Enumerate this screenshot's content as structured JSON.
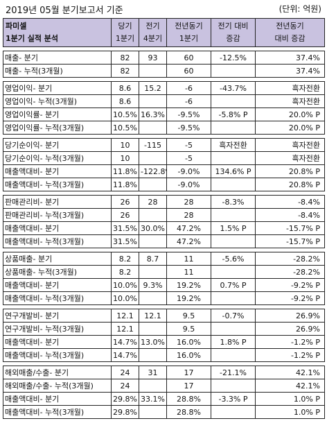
{
  "title": "2019년 05월 분기보고서 기준",
  "unit": "(단위: 억원)",
  "header": {
    "company": "파미셀",
    "subtitle": "1분기 실적 분석",
    "cols": [
      [
        "당기",
        "1분기"
      ],
      [
        "전기",
        "4분기"
      ],
      [
        "전년동기",
        "1분기"
      ],
      [
        "전기 대비",
        "증감"
      ],
      [
        "전년동기",
        "대비 증감"
      ]
    ]
  },
  "groups": [
    [
      [
        "매출- 분기",
        "82",
        "93",
        "60",
        "-12.5%",
        "37.4%"
      ],
      [
        "매출- 누적(3개월)",
        "82",
        "",
        "60",
        "",
        "37.4%"
      ]
    ],
    [
      [
        "영업이익- 분기",
        "8.6",
        "15.2",
        "-6",
        "-43.7%",
        "흑자전환"
      ],
      [
        "영업이익- 누적(3개월)",
        "8.6",
        "",
        "-6",
        "",
        "흑자전환"
      ],
      [
        "영업이익률- 분기",
        "10.5%",
        "16.3%",
        "-9.5%",
        "-5.8% P",
        "20.0% P"
      ],
      [
        "영업이익률- 누적(3개월)",
        "10.5%",
        "",
        "-9.5%",
        "",
        "20.0% P"
      ]
    ],
    [
      [
        "당기순이익- 분기",
        "10",
        "-115",
        "-5",
        "흑자전환",
        "흑자전환"
      ],
      [
        "당기순이익- 누적(3개월)",
        "10",
        "",
        "-5",
        "",
        "흑자전환"
      ],
      [
        "매출액대비- 분기",
        "11.8%",
        "-122.8%",
        "-9.0%",
        "134.6% P",
        "20.8% P"
      ],
      [
        "매출액대비- 누적(3개월)",
        "11.8%",
        "",
        "-9.0%",
        "",
        "20.8% P"
      ]
    ],
    [
      [
        "판매관리비- 분기",
        "26",
        "28",
        "28",
        "-8.3%",
        "-8.4%"
      ],
      [
        "판매관리비- 누적(3개월)",
        "26",
        "",
        "28",
        "",
        "-8.4%"
      ],
      [
        "매출액대비- 분기",
        "31.5%",
        "30.0%",
        "47.2%",
        "1.5% P",
        "-15.7% P"
      ],
      [
        "매출액대비- 누적(3개월)",
        "31.5%",
        "",
        "47.2%",
        "",
        "-15.7% P"
      ]
    ],
    [
      [
        "상품매출- 분기",
        "8.2",
        "8.7",
        "11",
        "-5.6%",
        "-28.2%"
      ],
      [
        "상품매출- 누적(3개월)",
        "8.2",
        "",
        "11",
        "",
        "-28.2%"
      ],
      [
        "매출액대비- 분기",
        "10.0%",
        "9.3%",
        "19.2%",
        "0.7% P",
        "-9.2% P"
      ],
      [
        "매출액대비- 누적(3개월)",
        "10.0%",
        "",
        "19.2%",
        "",
        "-9.2% P"
      ]
    ],
    [
      [
        "연구개발비- 분기",
        "12.1",
        "12.1",
        "9.5",
        "-0.7%",
        "26.9%"
      ],
      [
        "연구개발비- 누적(3개월)",
        "12.1",
        "",
        "9.5",
        "",
        "26.9%"
      ],
      [
        "매출액대비- 분기",
        "14.7%",
        "13.0%",
        "16.0%",
        "1.8% P",
        "-1.2% P"
      ],
      [
        "매출액대비- 누적(3개월)",
        "14.7%",
        "",
        "16.0%",
        "",
        "-1.2% P"
      ]
    ],
    [
      [
        "해외매출/수출- 분기",
        "24",
        "31",
        "17",
        "-21.1%",
        "42.1%"
      ],
      [
        "해외매출/수출- 누적(3개월)",
        "24",
        "",
        "17",
        "",
        "42.1%"
      ],
      [
        "매출액대비- 분기",
        "29.8%",
        "33.1%",
        "28.8%",
        "-3.3% P",
        "1.0% P"
      ],
      [
        "매출액대비- 누적(3개월)",
        "29.8%",
        "",
        "28.8%",
        "",
        "1.0% P"
      ]
    ]
  ]
}
